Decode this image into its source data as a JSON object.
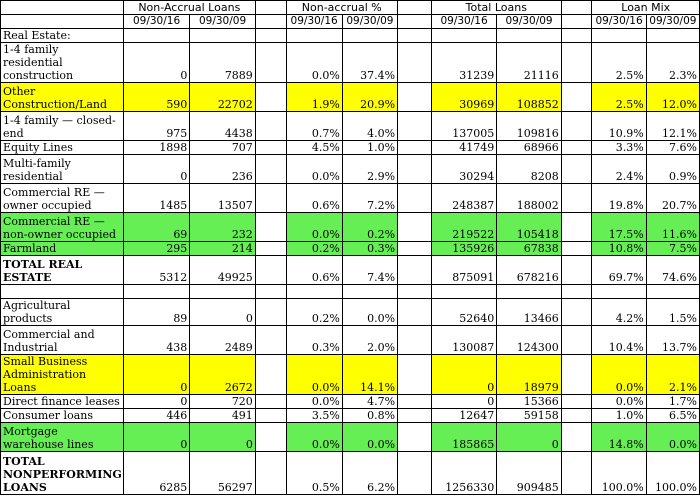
{
  "header": {
    "groups": [
      "Non-Accrual Loans",
      "Non-accrual %",
      "Total Loans",
      "Loan Mix"
    ],
    "dates": [
      "09/30/16",
      "09/30/09"
    ]
  },
  "rows": [
    {
      "label": "Real Estate:",
      "values": [
        "",
        "",
        "",
        "",
        "",
        "",
        "",
        ""
      ],
      "hl": "",
      "h": 15,
      "bold": false
    },
    {
      "label": "1-4 family residential construction",
      "values": [
        "0",
        "7889",
        "0.0%",
        "37.4%",
        "31239",
        "21116",
        "2.5%",
        "2.3%"
      ],
      "hl": "",
      "h": 30,
      "bold": false
    },
    {
      "label": "Other Construction/Land",
      "values": [
        "590",
        "22702",
        "1.9%",
        "20.9%",
        "30969",
        "108852",
        "2.5%",
        "12.0%"
      ],
      "hl": "yellow",
      "h": 30,
      "bold": false
    },
    {
      "label": "1-4 family — closed-end",
      "values": [
        "975",
        "4438",
        "0.7%",
        "4.0%",
        "137005",
        "109816",
        "10.9%",
        "12.1%"
      ],
      "hl": "",
      "h": 30,
      "bold": false
    },
    {
      "label": "Equity Lines",
      "values": [
        "1898",
        "707",
        "4.5%",
        "1.0%",
        "41749",
        "68966",
        "3.3%",
        "7.6%"
      ],
      "hl": "",
      "h": 15,
      "bold": false
    },
    {
      "label": "Multi-family residential",
      "values": [
        "0",
        "236",
        "0.0%",
        "2.9%",
        "30294",
        "8208",
        "2.4%",
        "0.9%"
      ],
      "hl": "",
      "h": 30,
      "bold": false
    },
    {
      "label": "Commercial RE — owner occupied",
      "values": [
        "1485",
        "13507",
        "0.6%",
        "7.2%",
        "248387",
        "188002",
        "19.8%",
        "20.7%"
      ],
      "hl": "",
      "h": 30,
      "bold": false
    },
    {
      "label": "Commercial RE — non-owner occupied",
      "values": [
        "69",
        "232",
        "0.0%",
        "0.2%",
        "219522",
        "105418",
        "17.5%",
        "11.6%"
      ],
      "hl": "green",
      "h": 30,
      "bold": false
    },
    {
      "label": "Farmland",
      "values": [
        "295",
        "214",
        "0.2%",
        "0.3%",
        "135926",
        "67838",
        "10.8%",
        "7.5%"
      ],
      "hl": "green",
      "h": 15,
      "bold": false
    },
    {
      "label": "TOTAL REAL ESTATE",
      "values": [
        "5312",
        "49925",
        "0.6%",
        "7.4%",
        "875091",
        "678216",
        "69.7%",
        "74.6%"
      ],
      "hl": "",
      "h": 30,
      "bold": true
    },
    {
      "label": "",
      "values": [
        "",
        "",
        "",
        "",
        "",
        "",
        "",
        ""
      ],
      "hl": "",
      "h": 15,
      "bold": false
    },
    {
      "label": "Agricultural products",
      "values": [
        "89",
        "0",
        "0.2%",
        "0.0%",
        "52640",
        "13466",
        "4.2%",
        "1.5%"
      ],
      "hl": "",
      "h": 15,
      "bold": false
    },
    {
      "label": "Commercial and Industrial",
      "values": [
        "438",
        "2489",
        "0.3%",
        "2.0%",
        "130087",
        "124300",
        "10.4%",
        "13.7%"
      ],
      "hl": "",
      "h": 30,
      "bold": false
    },
    {
      "label": "Small Business Administration Loans",
      "values": [
        "0",
        "2672",
        "0.0%",
        "14.1%",
        "0",
        "18979",
        "0.0%",
        "2.1%"
      ],
      "hl": "yellow",
      "h": 30,
      "bold": false
    },
    {
      "label": "Direct finance leases",
      "values": [
        "0",
        "720",
        "0.0%",
        "4.7%",
        "0",
        "15366",
        "0.0%",
        "1.7%"
      ],
      "hl": "",
      "h": 15,
      "bold": false
    },
    {
      "label": "Consumer loans",
      "values": [
        "446",
        "491",
        "3.5%",
        "0.8%",
        "12647",
        "59158",
        "1.0%",
        "6.5%"
      ],
      "hl": "",
      "h": 15,
      "bold": false
    },
    {
      "label": "Mortgage warehouse lines",
      "values": [
        "0",
        "0",
        "0.0%",
        "0.0%",
        "185865",
        "0",
        "14.8%",
        "0.0%"
      ],
      "hl": "green",
      "h": 30,
      "bold": false
    },
    {
      "label": "TOTAL NONPERFORMING LOANS",
      "values": [
        "6285",
        "56297",
        "0.5%",
        "6.2%",
        "1256330",
        "909485",
        "100.0%",
        "100.0%"
      ],
      "hl": "",
      "h": 44,
      "bold": true
    }
  ]
}
